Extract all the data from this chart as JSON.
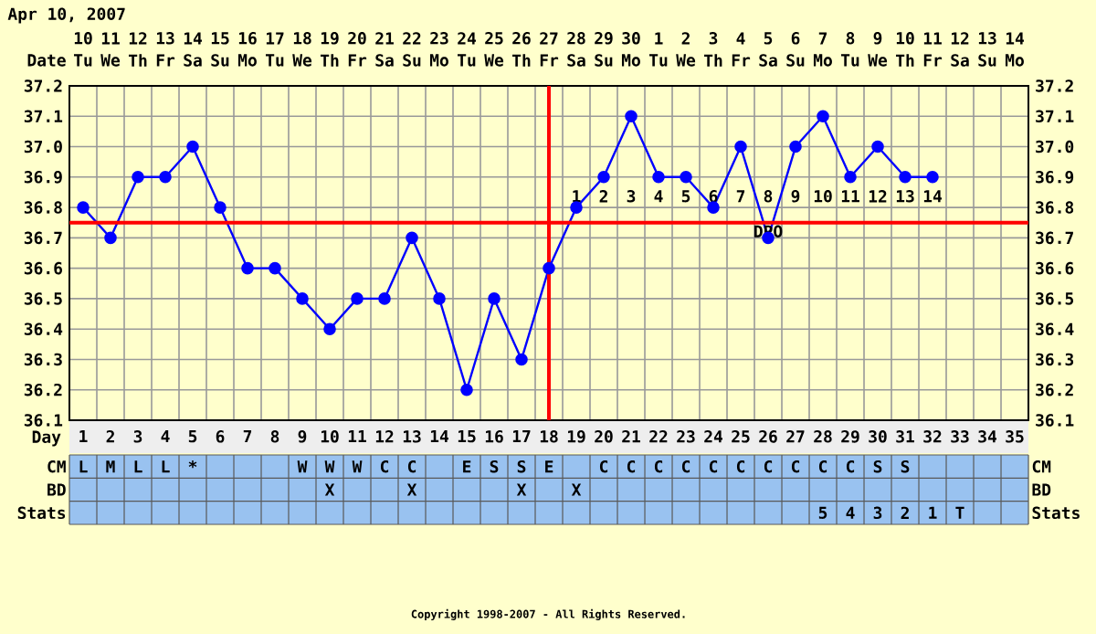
{
  "chart_data": [
    {
      "type": "heatmap",
      "categories": [
        "10",
        "11",
        "12",
        "13",
        "14",
        "15",
        "16",
        "17",
        "18",
        "19",
        "20",
        "21",
        "22",
        "23",
        "24",
        "25",
        "26",
        "27",
        "28",
        "29",
        "30",
        "1",
        "2",
        "3",
        "4",
        "5",
        "6",
        "7",
        "8",
        "9",
        "10",
        "11",
        "12",
        "13",
        "14"
      ],
      "y_categories": [
        "Date"
      ],
      "cells": [
        [
          null,
          null,
          null,
          null,
          null,
          null,
          null,
          null,
          null,
          null,
          null,
          null,
          null,
          null,
          null,
          null,
          null,
          null,
          null,
          null,
          null,
          null,
          null,
          null,
          null,
          null,
          null,
          null,
          null,
          null,
          null,
          null,
          null,
          null,
          null
        ]
      ],
      "cell_labels": [
        [
          "Tu",
          "We",
          "Th",
          "Fr",
          "Sa",
          "Su",
          "Mo",
          "Tu",
          "We",
          "Th",
          "Fr",
          "Sa",
          "Su",
          "Mo",
          "Tu",
          "We",
          "Th",
          "Fr",
          "Sa",
          "Su",
          "Mo",
          "Tu",
          "We",
          "Th",
          "Fr",
          "Sa",
          "Su",
          "Mo",
          "Tu",
          "We",
          "Th",
          "Fr",
          "Sa",
          "Su",
          "Mo"
        ]
      ]
    },
    {
      "type": "line",
      "title": "Apr 10, 2007",
      "xlabel": "Day",
      "categories": [
        "1",
        "2",
        "3",
        "4",
        "5",
        "6",
        "7",
        "8",
        "9",
        "10",
        "11",
        "12",
        "13",
        "14",
        "15",
        "16",
        "17",
        "18",
        "19",
        "20",
        "21",
        "22",
        "23",
        "24",
        "25",
        "26",
        "27",
        "28",
        "29",
        "30",
        "31",
        "32",
        "33",
        "34",
        "35"
      ],
      "series": [
        {
          "color": "#0000ff",
          "values": [
            36.8,
            36.7,
            36.9,
            36.9,
            37.0,
            36.8,
            36.6,
            36.6,
            36.5,
            36.4,
            36.5,
            36.5,
            36.7,
            36.5,
            36.2,
            36.5,
            36.3,
            36.6,
            36.8,
            36.9,
            37.1,
            36.9,
            36.9,
            36.8,
            37.0,
            36.7,
            37.0,
            37.1,
            36.9,
            37.0,
            36.9,
            36.9,
            null,
            null,
            null
          ]
        }
      ],
      "ylim": [
        36.1,
        37.2
      ],
      "yticks": [
        36.1,
        36.2,
        36.3,
        36.4,
        36.5,
        36.6,
        36.7,
        36.8,
        36.9,
        {
          "value": 37.0,
          "label": "37.0"
        },
        37.1,
        37.2
      ],
      "y2lim": [
        36.1,
        37.2
      ],
      "y2ticks": [
        36.1,
        36.2,
        36.3,
        36.4,
        36.5,
        36.6,
        36.7,
        36.8,
        36.9,
        {
          "value": 37.0,
          "label": "37.0"
        },
        37.1,
        37.2
      ],
      "grid": true,
      "marker": "circle",
      "ref_lines": [
        {
          "axis": "y",
          "value": 36.75,
          "color": "#ff0000"
        },
        {
          "axis": "x",
          "value": "18",
          "color": "#ff0000"
        }
      ],
      "annotations": [
        "1",
        "2",
        "3",
        "4",
        "5",
        "6",
        "7",
        "8",
        "9",
        "10",
        "11",
        "12",
        "13",
        "14",
        "DPO"
      ]
    },
    {
      "type": "heatmap",
      "color": "#99c2f0",
      "tick_labels": "y",
      "categories": [
        "1",
        "2",
        "3",
        "4",
        "5",
        "6",
        "7",
        "8",
        "9",
        "10",
        "11",
        "12",
        "13",
        "14",
        "15",
        "16",
        "17",
        "18",
        "19",
        "20",
        "21",
        "22",
        "23",
        "24",
        "25",
        "26",
        "27",
        "28",
        "29",
        "30",
        "31",
        "32",
        "33",
        "34",
        "35"
      ],
      "y_categories": [
        "CM",
        "BD",
        "Stats"
      ],
      "y2_categories": [
        "CM",
        "BD",
        "Stats"
      ],
      "cells": [
        [
          null,
          null,
          null,
          null,
          null,
          null,
          null,
          null,
          null,
          null,
          null,
          null,
          null,
          null,
          null,
          null,
          null,
          null,
          null,
          null,
          null,
          null,
          null,
          null,
          null,
          null,
          null,
          null,
          null,
          null,
          null,
          null,
          null,
          null,
          null
        ],
        [
          null,
          null,
          null,
          null,
          null,
          null,
          null,
          null,
          null,
          null,
          null,
          null,
          null,
          null,
          null,
          null,
          null,
          null,
          null,
          null,
          null,
          null,
          null,
          null,
          null,
          null,
          null,
          null,
          null,
          null,
          null,
          null,
          null,
          null,
          null
        ],
        [
          null,
          null,
          null,
          null,
          null,
          null,
          null,
          null,
          null,
          null,
          null,
          null,
          null,
          null,
          null,
          null,
          null,
          null,
          null,
          null,
          null,
          null,
          null,
          null,
          null,
          null,
          null,
          null,
          null,
          null,
          null,
          null,
          null,
          null,
          null
        ]
      ],
      "cell_labels": [
        [
          "L",
          "M",
          "L",
          "L",
          "*",
          null,
          null,
          null,
          "W",
          "W",
          "W",
          "C",
          "C",
          null,
          "E",
          "S",
          "S",
          "E",
          null,
          "C",
          "C",
          "C",
          "C",
          "C",
          "C",
          "C",
          "C",
          "C",
          "C",
          "S",
          "S",
          null,
          null,
          null,
          null
        ],
        [
          null,
          null,
          null,
          null,
          null,
          null,
          null,
          null,
          null,
          "X",
          null,
          null,
          "X",
          null,
          null,
          null,
          "X",
          null,
          "X",
          null,
          null,
          null,
          null,
          null,
          null,
          null,
          null,
          null,
          null,
          null,
          null,
          null,
          null,
          null,
          null
        ],
        [
          null,
          null,
          null,
          null,
          null,
          null,
          null,
          null,
          null,
          null,
          null,
          null,
          null,
          null,
          null,
          null,
          null,
          null,
          null,
          null,
          null,
          null,
          null,
          null,
          null,
          null,
          null,
          "5",
          "4",
          "3",
          "2",
          "1",
          "T",
          null,
          null
        ]
      ],
      "annotations": [
        "Copyright 1998-2007 - All Rights Reserved."
      ]
    }
  ]
}
